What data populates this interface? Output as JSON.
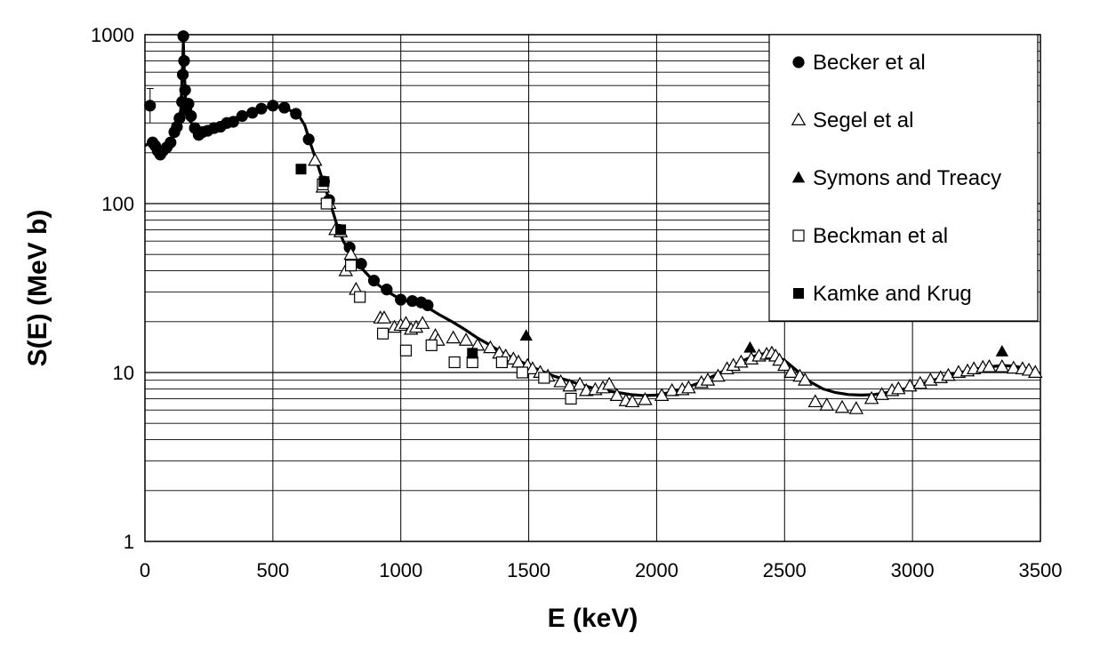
{
  "chart_data": {
    "type": "scatter",
    "xlabel": "E  (keV)",
    "ylabel": "S(E) (MeV b)",
    "xlim": [
      0,
      3500
    ],
    "ylim": [
      1,
      1000
    ],
    "y_scale": "log",
    "x_ticks": [
      0,
      500,
      1000,
      1500,
      2000,
      2500,
      3000,
      3500
    ],
    "y_tick_labels": [
      {
        "value": 1,
        "label": "1"
      },
      {
        "value": 10,
        "label": "10"
      },
      {
        "value": 100,
        "label": "100"
      },
      {
        "value": 1000,
        "label": "1000"
      }
    ],
    "grid": true,
    "legend_position": "top-right",
    "series": [
      {
        "name": "Becker et al",
        "marker": "filled-circle",
        "color": "#000000",
        "points": [
          {
            "x": 20,
            "y": 380,
            "err": [
              300,
              480
            ]
          },
          {
            "x": 30,
            "y": 230
          },
          {
            "x": 40,
            "y": 220
          },
          {
            "x": 50,
            "y": 205
          },
          {
            "x": 60,
            "y": 195
          },
          {
            "x": 70,
            "y": 205
          },
          {
            "x": 85,
            "y": 215
          },
          {
            "x": 100,
            "y": 230
          },
          {
            "x": 115,
            "y": 265
          },
          {
            "x": 125,
            "y": 285
          },
          {
            "x": 135,
            "y": 320
          },
          {
            "x": 145,
            "y": 400
          },
          {
            "x": 148,
            "y": 580
          },
          {
            "x": 150,
            "y": 980
          },
          {
            "x": 153,
            "y": 700
          },
          {
            "x": 157,
            "y": 470
          },
          {
            "x": 162,
            "y": 360
          },
          {
            "x": 170,
            "y": 390
          },
          {
            "x": 180,
            "y": 330
          },
          {
            "x": 195,
            "y": 280
          },
          {
            "x": 210,
            "y": 255
          },
          {
            "x": 225,
            "y": 265
          },
          {
            "x": 245,
            "y": 270
          },
          {
            "x": 270,
            "y": 280
          },
          {
            "x": 295,
            "y": 285
          },
          {
            "x": 320,
            "y": 300
          },
          {
            "x": 345,
            "y": 305
          },
          {
            "x": 380,
            "y": 330
          },
          {
            "x": 420,
            "y": 345
          },
          {
            "x": 455,
            "y": 365
          },
          {
            "x": 500,
            "y": 380
          },
          {
            "x": 545,
            "y": 370
          },
          {
            "x": 590,
            "y": 340
          },
          {
            "x": 640,
            "y": 240
          },
          {
            "x": 700,
            "y": 135
          },
          {
            "x": 720,
            "y": 105
          },
          {
            "x": 760,
            "y": 70
          },
          {
            "x": 800,
            "y": 55
          },
          {
            "x": 845,
            "y": 44
          },
          {
            "x": 895,
            "y": 35
          },
          {
            "x": 945,
            "y": 31
          },
          {
            "x": 1000,
            "y": 27
          },
          {
            "x": 1045,
            "y": 26.5
          },
          {
            "x": 1080,
            "y": 26
          },
          {
            "x": 1105,
            "y": 25
          }
        ]
      },
      {
        "name": "Segel et al",
        "marker": "open-triangle",
        "color": "#000000",
        "points": [
          {
            "x": 665,
            "y": 180
          },
          {
            "x": 695,
            "y": 125
          },
          {
            "x": 720,
            "y": 100
          },
          {
            "x": 745,
            "y": 70
          },
          {
            "x": 765,
            "y": 68
          },
          {
            "x": 785,
            "y": 40
          },
          {
            "x": 805,
            "y": 50
          },
          {
            "x": 825,
            "y": 31
          },
          {
            "x": 920,
            "y": 21
          },
          {
            "x": 935,
            "y": 21
          },
          {
            "x": 975,
            "y": 18.5
          },
          {
            "x": 1000,
            "y": 19
          },
          {
            "x": 1020,
            "y": 19.5
          },
          {
            "x": 1040,
            "y": 18
          },
          {
            "x": 1060,
            "y": 18.5
          },
          {
            "x": 1085,
            "y": 19.5
          },
          {
            "x": 1135,
            "y": 16.5
          },
          {
            "x": 1145,
            "y": 15.5
          },
          {
            "x": 1205,
            "y": 16
          },
          {
            "x": 1255,
            "y": 15.5
          },
          {
            "x": 1300,
            "y": 14.5
          },
          {
            "x": 1350,
            "y": 14
          },
          {
            "x": 1385,
            "y": 13
          },
          {
            "x": 1410,
            "y": 12.5
          },
          {
            "x": 1440,
            "y": 12
          },
          {
            "x": 1460,
            "y": 11.5
          },
          {
            "x": 1495,
            "y": 11
          },
          {
            "x": 1515,
            "y": 10.5
          },
          {
            "x": 1545,
            "y": 10
          },
          {
            "x": 1575,
            "y": 9.5
          },
          {
            "x": 1625,
            "y": 8.8
          },
          {
            "x": 1660,
            "y": 8.3
          },
          {
            "x": 1700,
            "y": 8.5
          },
          {
            "x": 1725,
            "y": 7.8
          },
          {
            "x": 1760,
            "y": 7.9
          },
          {
            "x": 1790,
            "y": 8.1
          },
          {
            "x": 1815,
            "y": 8.5
          },
          {
            "x": 1845,
            "y": 7.3
          },
          {
            "x": 1880,
            "y": 6.8
          },
          {
            "x": 1905,
            "y": 6.7
          },
          {
            "x": 1955,
            "y": 6.9
          },
          {
            "x": 2020,
            "y": 7.3
          },
          {
            "x": 2060,
            "y": 7.8
          },
          {
            "x": 2100,
            "y": 7.9
          },
          {
            "x": 2125,
            "y": 8.1
          },
          {
            "x": 2175,
            "y": 8.7
          },
          {
            "x": 2200,
            "y": 9
          },
          {
            "x": 2240,
            "y": 9.5
          },
          {
            "x": 2275,
            "y": 10.5
          },
          {
            "x": 2300,
            "y": 11
          },
          {
            "x": 2330,
            "y": 11.5
          },
          {
            "x": 2370,
            "y": 12
          },
          {
            "x": 2400,
            "y": 12.5
          },
          {
            "x": 2430,
            "y": 12.8
          },
          {
            "x": 2450,
            "y": 13
          },
          {
            "x": 2465,
            "y": 12.5
          },
          {
            "x": 2480,
            "y": 11.8
          },
          {
            "x": 2500,
            "y": 11
          },
          {
            "x": 2525,
            "y": 10
          },
          {
            "x": 2560,
            "y": 9.5
          },
          {
            "x": 2580,
            "y": 9
          },
          {
            "x": 2620,
            "y": 6.7
          },
          {
            "x": 2665,
            "y": 6.4
          },
          {
            "x": 2725,
            "y": 6.2
          },
          {
            "x": 2780,
            "y": 6.1
          },
          {
            "x": 2840,
            "y": 7
          },
          {
            "x": 2880,
            "y": 7.4
          },
          {
            "x": 2920,
            "y": 7.8
          },
          {
            "x": 2945,
            "y": 8
          },
          {
            "x": 2990,
            "y": 8.3
          },
          {
            "x": 3030,
            "y": 8.6
          },
          {
            "x": 3070,
            "y": 9
          },
          {
            "x": 3110,
            "y": 9.3
          },
          {
            "x": 3140,
            "y": 9.6
          },
          {
            "x": 3180,
            "y": 10
          },
          {
            "x": 3215,
            "y": 10.2
          },
          {
            "x": 3240,
            "y": 10.5
          },
          {
            "x": 3275,
            "y": 10.7
          },
          {
            "x": 3300,
            "y": 10.8
          },
          {
            "x": 3350,
            "y": 10.8
          },
          {
            "x": 3395,
            "y": 10.6
          },
          {
            "x": 3430,
            "y": 10.5
          },
          {
            "x": 3455,
            "y": 10.3
          },
          {
            "x": 3480,
            "y": 10
          }
        ]
      },
      {
        "name": "Symons and Treacy",
        "marker": "filled-triangle",
        "color": "#000000",
        "points": [
          {
            "x": 1490,
            "y": 16.5
          },
          {
            "x": 2365,
            "y": 14
          },
          {
            "x": 3350,
            "y": 13.3
          }
        ]
      },
      {
        "name": "Beckman et al",
        "marker": "open-square",
        "color": "#000000",
        "points": [
          {
            "x": 695,
            "y": 130
          },
          {
            "x": 710,
            "y": 100
          },
          {
            "x": 805,
            "y": 43
          },
          {
            "x": 840,
            "y": 28
          },
          {
            "x": 930,
            "y": 17
          },
          {
            "x": 1020,
            "y": 13.5
          },
          {
            "x": 1120,
            "y": 14.5
          },
          {
            "x": 1210,
            "y": 11.5
          },
          {
            "x": 1280,
            "y": 11.5
          },
          {
            "x": 1395,
            "y": 11.5
          },
          {
            "x": 1475,
            "y": 10
          },
          {
            "x": 1560,
            "y": 9.3
          },
          {
            "x": 1665,
            "y": 7
          }
        ]
      },
      {
        "name": "Kamke and Krug",
        "marker": "filled-square",
        "color": "#000000",
        "points": [
          {
            "x": 610,
            "y": 160
          },
          {
            "x": 700,
            "y": 135
          },
          {
            "x": 765,
            "y": 70
          },
          {
            "x": 1280,
            "y": 13
          }
        ]
      }
    ],
    "fit_curve": {
      "color": "#000000",
      "points": [
        [
          0,
          220
        ],
        [
          20,
          230
        ],
        [
          40,
          215
        ],
        [
          60,
          205
        ],
        [
          80,
          215
        ],
        [
          100,
          235
        ],
        [
          115,
          265
        ],
        [
          130,
          300
        ],
        [
          140,
          360
        ],
        [
          146,
          600
        ],
        [
          150,
          900
        ],
        [
          154,
          600
        ],
        [
          160,
          390
        ],
        [
          175,
          310
        ],
        [
          200,
          275
        ],
        [
          250,
          285
        ],
        [
          300,
          300
        ],
        [
          350,
          320
        ],
        [
          400,
          345
        ],
        [
          450,
          365
        ],
        [
          500,
          378
        ],
        [
          550,
          368
        ],
        [
          600,
          335
        ],
        [
          625,
          290
        ],
        [
          650,
          220
        ],
        [
          675,
          170
        ],
        [
          700,
          130
        ],
        [
          725,
          100
        ],
        [
          750,
          75
        ],
        [
          775,
          60
        ],
        [
          800,
          52
        ],
        [
          850,
          41
        ],
        [
          900,
          34
        ],
        [
          950,
          30
        ],
        [
          1000,
          27
        ],
        [
          1050,
          26
        ],
        [
          1100,
          24.5
        ],
        [
          1150,
          22
        ],
        [
          1200,
          20
        ],
        [
          1250,
          18
        ],
        [
          1300,
          16
        ],
        [
          1350,
          14.5
        ],
        [
          1400,
          13
        ],
        [
          1450,
          12
        ],
        [
          1500,
          11
        ],
        [
          1550,
          10.2
        ],
        [
          1600,
          9.5
        ],
        [
          1650,
          9
        ],
        [
          1700,
          8.5
        ],
        [
          1750,
          8.1
        ],
        [
          1800,
          7.8
        ],
        [
          1850,
          7.6
        ],
        [
          1900,
          7.4
        ],
        [
          1950,
          7.3
        ],
        [
          2000,
          7.35
        ],
        [
          2050,
          7.6
        ],
        [
          2100,
          8
        ],
        [
          2150,
          8.5
        ],
        [
          2200,
          9.2
        ],
        [
          2250,
          10
        ],
        [
          2300,
          11
        ],
        [
          2350,
          12
        ],
        [
          2400,
          12.8
        ],
        [
          2430,
          13
        ],
        [
          2450,
          12.8
        ],
        [
          2500,
          11.8
        ],
        [
          2550,
          10.2
        ],
        [
          2600,
          8.8
        ],
        [
          2650,
          8
        ],
        [
          2700,
          7.6
        ],
        [
          2750,
          7.4
        ],
        [
          2800,
          7.35
        ],
        [
          2850,
          7.4
        ],
        [
          2900,
          7.6
        ],
        [
          2950,
          7.9
        ],
        [
          3000,
          8.2
        ],
        [
          3050,
          8.7
        ],
        [
          3100,
          9.2
        ],
        [
          3150,
          9.7
        ],
        [
          3200,
          10.1
        ],
        [
          3250,
          10.5
        ],
        [
          3300,
          10.8
        ],
        [
          3350,
          11
        ],
        [
          3400,
          10.9
        ],
        [
          3450,
          10.5
        ],
        [
          3500,
          9.5
        ]
      ]
    }
  }
}
